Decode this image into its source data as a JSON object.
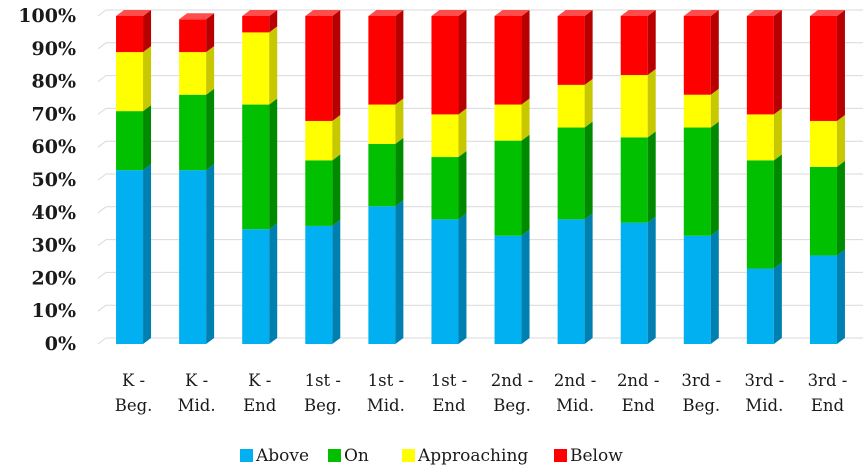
{
  "chart_data": {
    "type": "bar",
    "stacked": true,
    "three_d": true,
    "categories": [
      [
        "K -",
        "Beg."
      ],
      [
        "K -",
        "Mid."
      ],
      [
        "K -",
        "End"
      ],
      [
        "1st -",
        "Beg."
      ],
      [
        "1st -",
        "Mid."
      ],
      [
        "1st -",
        "End"
      ],
      [
        "2nd -",
        "Beg."
      ],
      [
        "2nd -",
        "Mid."
      ],
      [
        "2nd -",
        "End"
      ],
      [
        "3rd -",
        "Beg."
      ],
      [
        "3rd -",
        "Mid."
      ],
      [
        "3rd -",
        "End"
      ]
    ],
    "series": [
      {
        "name": "Above",
        "color": "#00b0f0",
        "side": "#0080b0",
        "top": "#33c4ff",
        "values": [
          53,
          53,
          35,
          36,
          42,
          38,
          33,
          38,
          37,
          33,
          23,
          27
        ]
      },
      {
        "name": "On",
        "color": "#00c000",
        "side": "#008a00",
        "top": "#33d033",
        "values": [
          18,
          23,
          38,
          20,
          19,
          19,
          29,
          28,
          26,
          33,
          33,
          27
        ]
      },
      {
        "name": "Approaching",
        "color": "#ffff00",
        "side": "#c8c800",
        "top": "#ffff66",
        "values": [
          18,
          13,
          22,
          12,
          12,
          13,
          11,
          13,
          19,
          10,
          14,
          14
        ]
      },
      {
        "name": "Below",
        "color": "#ff0000",
        "side": "#b80000",
        "top": "#ff4d4d",
        "values": [
          11,
          10,
          5,
          32,
          27,
          30,
          27,
          21,
          18,
          24,
          30,
          32
        ]
      }
    ],
    "y_ticks": [
      "0%",
      "10%",
      "20%",
      "30%",
      "40%",
      "50%",
      "60%",
      "70%",
      "80%",
      "90%",
      "100%"
    ],
    "ylim": [
      0,
      100
    ],
    "grid": true,
    "legend_position": "bottom"
  }
}
